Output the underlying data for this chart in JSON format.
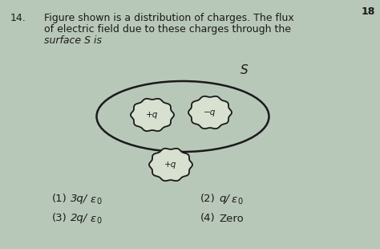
{
  "bg_color": "#b8c8b8",
  "question_number": "14.",
  "question_text_line1": "Figure shown is a distribution of charges. The flux",
  "question_text_line2": "of electric field due to these charges through the",
  "question_text_line3": "surface S is",
  "page_number": "18",
  "text_color": "#1a1a1a",
  "ellipse_color": "#1a1a1a",
  "charge_blob_facecolor": "#d8e0d0",
  "charge_blob_edgecolor": "#1a1a1a",
  "S_label": "S"
}
